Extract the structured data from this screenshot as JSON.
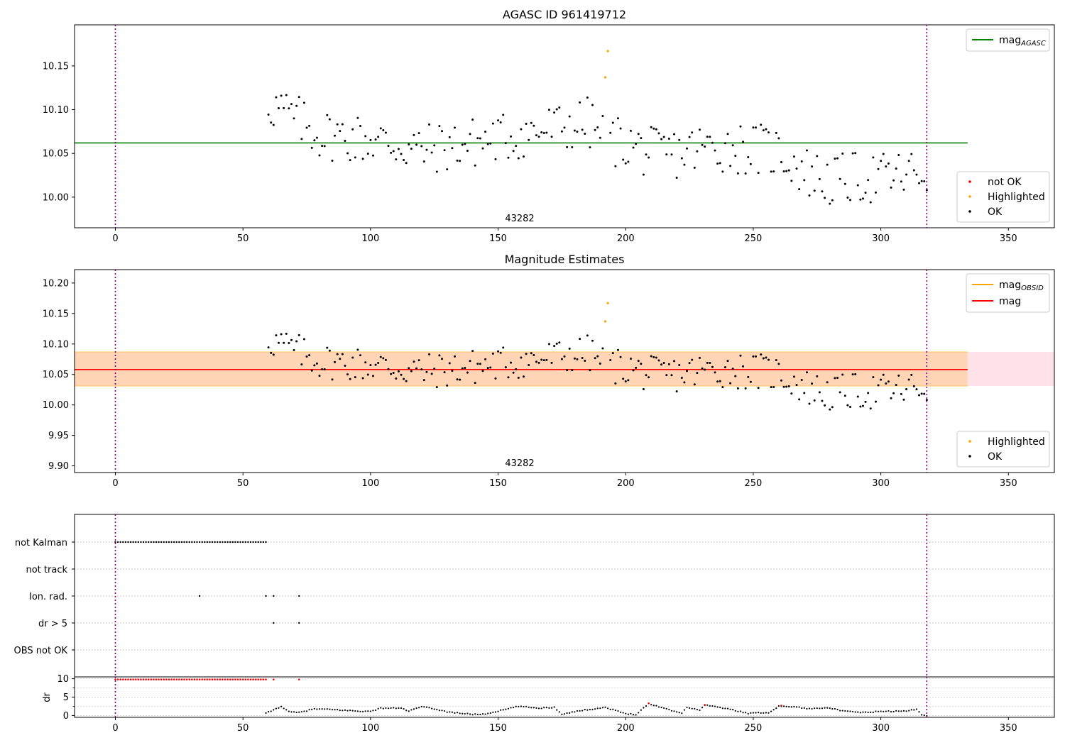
{
  "chart_data": [
    {
      "type": "scatter",
      "title": "AGASC ID 961419712",
      "annotation": "43282",
      "xlim": [
        -16,
        368
      ],
      "ylim": [
        9.965,
        10.197
      ],
      "xticks": [
        0,
        50,
        100,
        150,
        200,
        250,
        300,
        350
      ],
      "yticks": [
        "10.00",
        "10.05",
        "10.10",
        "10.15"
      ],
      "vlines": [
        0,
        318
      ],
      "hline": {
        "label": "mag_AGASC",
        "y": 10.062,
        "x_range": [
          -16,
          334
        ],
        "color": "#008000"
      },
      "legend_lines": [
        {
          "label": "mag",
          "sub": "AGASC",
          "color": "#008000"
        }
      ],
      "legend_markers": [
        {
          "label": "not OK",
          "color": "#ff0000"
        },
        {
          "label": "Highlighted",
          "color": "#ffa500"
        },
        {
          "label": "OK",
          "color": "#000000"
        }
      ],
      "highlighted": [
        [
          192,
          10.137
        ],
        [
          193,
          10.167
        ]
      ],
      "ok_trend": [
        [
          60,
          10.108
        ],
        [
          80,
          10.072
        ],
        [
          100,
          10.066
        ],
        [
          120,
          10.054
        ],
        [
          140,
          10.062
        ],
        [
          160,
          10.072
        ],
        [
          175,
          10.08
        ],
        [
          185,
          10.085
        ],
        [
          193,
          10.066
        ],
        [
          200,
          10.062
        ],
        [
          210,
          10.05
        ],
        [
          220,
          10.05
        ],
        [
          230,
          10.056
        ],
        [
          240,
          10.058
        ],
        [
          250,
          10.055
        ],
        [
          260,
          10.052
        ],
        [
          270,
          10.03
        ],
        [
          280,
          10.018
        ],
        [
          290,
          10.022
        ],
        [
          300,
          10.022
        ],
        [
          310,
          10.025
        ],
        [
          318,
          10.03
        ]
      ],
      "ok_spread": 0.03
    },
    {
      "type": "scatter",
      "title": "Magnitude Estimates",
      "annotation": "43282",
      "xlim": [
        -16,
        368
      ],
      "ylim": [
        9.889,
        10.222
      ],
      "xticks": [
        0,
        50,
        100,
        150,
        200,
        250,
        300,
        350
      ],
      "yticks": [
        "9.90",
        "9.95",
        "10.00",
        "10.05",
        "10.10",
        "10.15",
        "10.20"
      ],
      "vlines": [
        0,
        318
      ],
      "hline": {
        "label": "mag",
        "y": 10.058,
        "x_range": [
          -16,
          334
        ],
        "color": "#ff0000"
      },
      "band_pink": [
        10.031,
        10.087
      ],
      "band_orange": {
        "y": [
          10.031,
          10.087
        ],
        "x": [
          -16,
          334
        ]
      },
      "legend_lines": [
        {
          "label": "mag",
          "sub": "OBSID",
          "color": "#ffa500"
        },
        {
          "label": "mag",
          "sub": "",
          "color": "#ff0000"
        }
      ],
      "legend_markers": [
        {
          "label": "Highlighted",
          "color": "#ffa500"
        },
        {
          "label": "OK",
          "color": "#000000"
        }
      ],
      "highlighted": [
        [
          192,
          10.137
        ],
        [
          193,
          10.167
        ]
      ]
    },
    {
      "type": "scatter",
      "title": "",
      "xlim": [
        -16,
        368
      ],
      "xticks": [
        0,
        50,
        100,
        150,
        200,
        250,
        300,
        350
      ],
      "vlines": [
        0,
        318
      ],
      "categories": [
        "not Kalman",
        "not track",
        "Ion. rad.",
        "dr > 5",
        "OBS not OK"
      ],
      "flags": {
        "not Kalman": {
          "from": 0,
          "to": 59,
          "step": 1
        },
        "Ion. rad.": [
          33,
          59,
          62,
          72
        ],
        "dr > 5": [
          62,
          72
        ]
      }
    },
    {
      "type": "scatter",
      "title": "",
      "ylabel": "dr",
      "xlim": [
        -16,
        368
      ],
      "ylim": [
        -0.5,
        10.5
      ],
      "xticks": [
        0,
        50,
        100,
        150,
        200,
        250,
        300,
        350
      ],
      "yticks": [
        0,
        5,
        10
      ],
      "vlines": [
        0,
        318
      ],
      "red_high": {
        "from": 0,
        "to": 59,
        "y": 9.8,
        "extra": [
          62,
          72
        ]
      },
      "dr_curve": [
        [
          59,
          0.6
        ],
        [
          62,
          1.5
        ],
        [
          65,
          2.5
        ],
        [
          68,
          1.0
        ],
        [
          72,
          0.8
        ],
        [
          78,
          1.8
        ],
        [
          85,
          1.6
        ],
        [
          95,
          1.2
        ],
        [
          100,
          1.1
        ],
        [
          104,
          2.0
        ],
        [
          112,
          2.0
        ],
        [
          115,
          1.2
        ],
        [
          120,
          2.4
        ],
        [
          125,
          1.8
        ],
        [
          130,
          1.0
        ],
        [
          140,
          0.3
        ],
        [
          145,
          0.4
        ],
        [
          150,
          1.2
        ],
        [
          158,
          2.5
        ],
        [
          166,
          2.0
        ],
        [
          172,
          2.2
        ],
        [
          175,
          0.4
        ],
        [
          182,
          1.3
        ],
        [
          192,
          2.2
        ],
        [
          200,
          0.5
        ],
        [
          204,
          0.3
        ],
        [
          209,
          3.2
        ],
        [
          215,
          2.0
        ],
        [
          222,
          0.6
        ],
        [
          224,
          2.3
        ],
        [
          229,
          1.4
        ],
        [
          231,
          2.9
        ],
        [
          240,
          1.8
        ],
        [
          248,
          0.6
        ],
        [
          256,
          0.8
        ],
        [
          260,
          2.5
        ],
        [
          266,
          2.4
        ],
        [
          272,
          1.8
        ],
        [
          279,
          2.2
        ],
        [
          285,
          1.2
        ],
        [
          293,
          0.8
        ],
        [
          300,
          1.1
        ],
        [
          310,
          1.2
        ],
        [
          314,
          1.7
        ],
        [
          316,
          0.3
        ],
        [
          318,
          0.0
        ]
      ],
      "red_points": [
        [
          209,
          3.3
        ],
        [
          231,
          2.9
        ],
        [
          261,
          2.7
        ]
      ]
    }
  ]
}
